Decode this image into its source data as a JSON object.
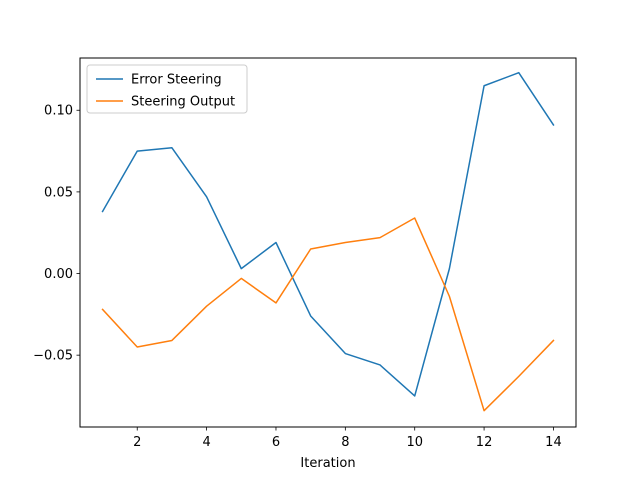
{
  "chart_data": {
    "type": "line",
    "title": "",
    "xlabel": "Iteration",
    "ylabel": "",
    "xlim": [
      0.35,
      14.65
    ],
    "ylim": [
      -0.094,
      0.132
    ],
    "grid": false,
    "legend_position": "top-left",
    "x_ticks": [
      2,
      4,
      6,
      8,
      10,
      12,
      14
    ],
    "x_tick_labels": [
      "2",
      "4",
      "6",
      "8",
      "10",
      "12",
      "14"
    ],
    "y_ticks": [
      0.1,
      0.05,
      0.0,
      -0.05
    ],
    "y_tick_labels": [
      "0.10",
      "0.05",
      "0.00",
      "−0.05"
    ],
    "x": [
      1,
      2,
      3,
      4,
      5,
      6,
      7,
      8,
      9,
      10,
      11,
      12,
      13,
      14
    ],
    "series": [
      {
        "name": "Error Steering",
        "color": "#1f77b4",
        "values": [
          0.038,
          0.075,
          0.077,
          0.047,
          0.003,
          0.019,
          -0.026,
          -0.049,
          -0.056,
          -0.075,
          0.003,
          0.115,
          0.123,
          0.091
        ]
      },
      {
        "name": "Steering Output",
        "color": "#ff7f0e",
        "values": [
          -0.022,
          -0.045,
          -0.041,
          -0.02,
          -0.003,
          -0.018,
          0.015,
          0.019,
          0.022,
          0.034,
          -0.014,
          -0.084,
          -0.063,
          -0.041
        ]
      }
    ]
  }
}
